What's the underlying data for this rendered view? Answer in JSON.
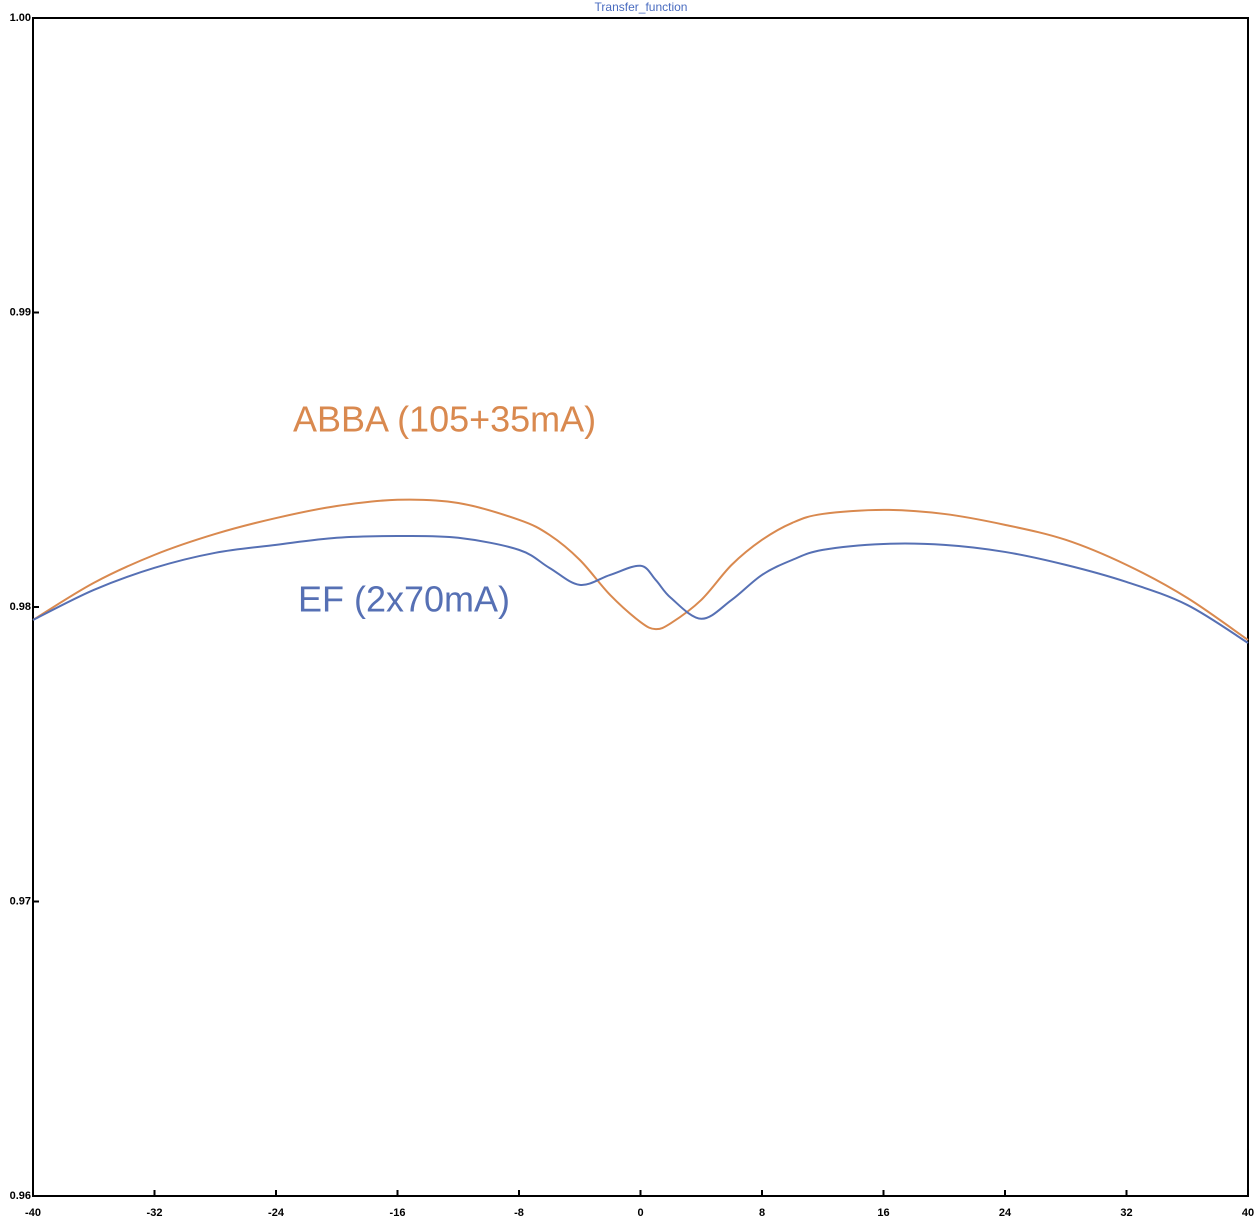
{
  "chart_data": {
    "type": "line",
    "title": "Transfer_function",
    "x": [
      -40,
      -36,
      -32,
      -28,
      -24,
      -20,
      -16,
      -12,
      -8,
      -6,
      -4,
      -2,
      0,
      1,
      2,
      4,
      6,
      8,
      10,
      12,
      16,
      20,
      24,
      28,
      32,
      36,
      40
    ],
    "series": [
      {
        "name": "ABBA (105+35mA)",
        "color": "#d9894f",
        "values": [
          0.97956,
          0.98082,
          0.98177,
          0.98248,
          0.98302,
          0.98343,
          0.98364,
          0.98353,
          0.98296,
          0.98245,
          0.9816,
          0.98041,
          0.97949,
          0.97925,
          0.97945,
          0.98024,
          0.98143,
          0.98228,
          0.98286,
          0.98316,
          0.9833,
          0.98316,
          0.98279,
          0.98228,
          0.98143,
          0.98031,
          0.97888
        ]
      },
      {
        "name": "EF (2x70mA)",
        "color": "#5670b4",
        "values": [
          0.97956,
          0.98058,
          0.98133,
          0.98184,
          0.98211,
          0.98235,
          0.98241,
          0.98235,
          0.98194,
          0.98133,
          0.98075,
          0.98109,
          0.9814,
          0.98092,
          0.98031,
          0.9796,
          0.98024,
          0.98109,
          0.9816,
          0.98194,
          0.98214,
          0.98211,
          0.98187,
          0.98143,
          0.98085,
          0.98007,
          0.97878
        ]
      }
    ],
    "xlim": [
      -40,
      40
    ],
    "xticks": [
      -40,
      -32,
      -24,
      -16,
      -8,
      0,
      8,
      16,
      24,
      32,
      40
    ],
    "ylim": [
      0.96,
      1
    ],
    "yticks": [
      0.96,
      0.97,
      0.98,
      0.99,
      {
        "value": 1,
        "label": "1.00"
      }
    ],
    "grid": false
  }
}
